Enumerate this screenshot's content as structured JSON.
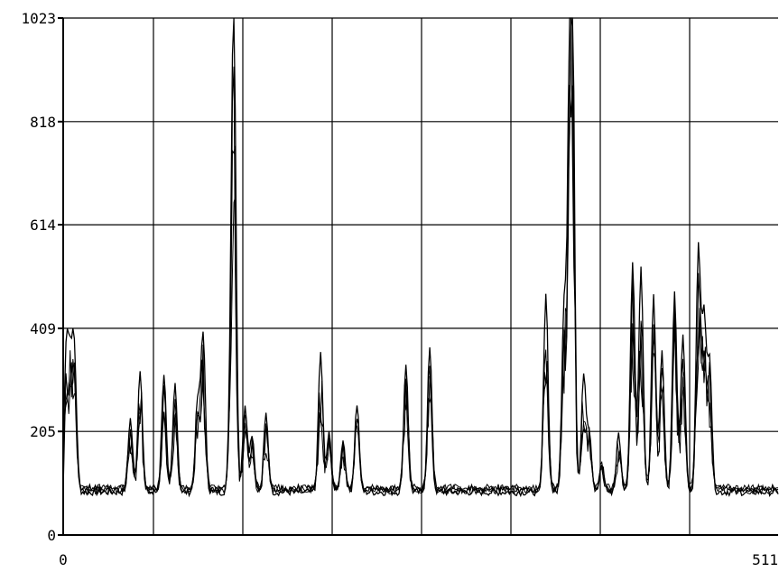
{
  "chart_data": {
    "type": "line",
    "title": "",
    "xlabel": "",
    "ylabel": "",
    "xlim": [
      0,
      511
    ],
    "ylim": [
      0,
      1023
    ],
    "grid": true,
    "y_tick_labels": [
      "1023",
      "818",
      "614",
      "409",
      "205",
      "0"
    ],
    "y_ticks": [
      1023,
      818,
      614,
      409,
      205,
      0
    ],
    "x_tick_labels": [
      "0",
      "511"
    ],
    "x_ticks": [
      0,
      511
    ],
    "baseline": 85,
    "series_color": "#000000",
    "peaks": [
      {
        "x": 2,
        "y": 360
      },
      {
        "x": 8,
        "y": 350
      },
      {
        "x": 5,
        "y": 300
      },
      {
        "x": 48,
        "y": 230
      },
      {
        "x": 55,
        "y": 330
      },
      {
        "x": 72,
        "y": 320
      },
      {
        "x": 80,
        "y": 300
      },
      {
        "x": 96,
        "y": 260
      },
      {
        "x": 100,
        "y": 400
      },
      {
        "x": 120,
        "y": 260
      },
      {
        "x": 122,
        "y": 970
      },
      {
        "x": 130,
        "y": 260
      },
      {
        "x": 135,
        "y": 200
      },
      {
        "x": 145,
        "y": 240
      },
      {
        "x": 184,
        "y": 360
      },
      {
        "x": 190,
        "y": 200
      },
      {
        "x": 200,
        "y": 190
      },
      {
        "x": 210,
        "y": 260
      },
      {
        "x": 245,
        "y": 340
      },
      {
        "x": 262,
        "y": 370
      },
      {
        "x": 345,
        "y": 480
      },
      {
        "x": 358,
        "y": 450
      },
      {
        "x": 362,
        "y": 760
      },
      {
        "x": 364,
        "y": 900
      },
      {
        "x": 372,
        "y": 320
      },
      {
        "x": 376,
        "y": 200
      },
      {
        "x": 385,
        "y": 140
      },
      {
        "x": 397,
        "y": 200
      },
      {
        "x": 407,
        "y": 540
      },
      {
        "x": 413,
        "y": 530
      },
      {
        "x": 422,
        "y": 470
      },
      {
        "x": 428,
        "y": 360
      },
      {
        "x": 437,
        "y": 480
      },
      {
        "x": 443,
        "y": 400
      },
      {
        "x": 454,
        "y": 560
      },
      {
        "x": 458,
        "y": 420
      },
      {
        "x": 462,
        "y": 350
      }
    ]
  }
}
